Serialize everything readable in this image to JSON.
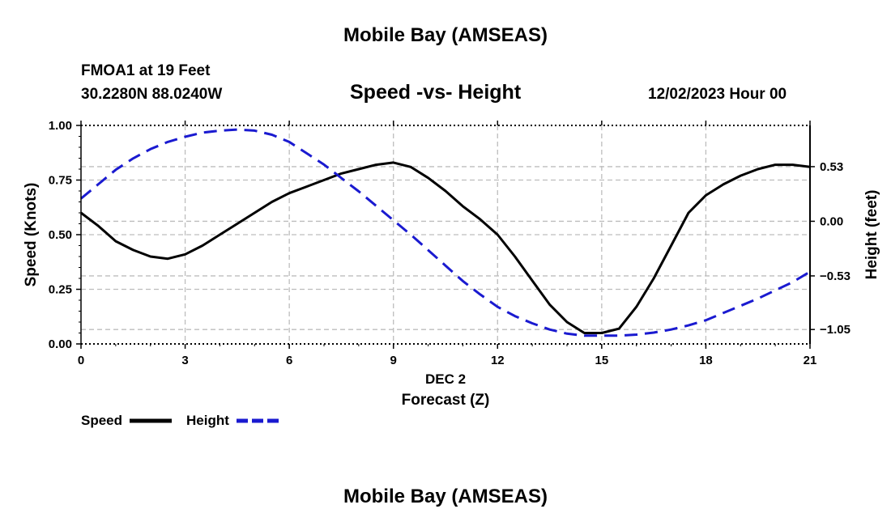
{
  "header": {
    "top_title": "Mobile Bay (AMSEAS)",
    "station": "FMOA1 at 19 Feet",
    "coords": "30.2280N  88.0240W",
    "subtitle": "Speed -vs- Height",
    "datetime": "12/02/2023 Hour 00",
    "bottom_title": "Mobile Bay (AMSEAS)"
  },
  "chart_data": {
    "type": "line",
    "title": "Speed -vs- Height",
    "xlabel": "Forecast (Z)",
    "xlabel_date": "DEC 2",
    "ylabel_left": "Speed (Knots)",
    "ylabel_right": "Height (feet)",
    "xlim": [
      0,
      21
    ],
    "ylim_left": [
      0,
      1
    ],
    "ylim_right": [
      -1.19,
      0.93
    ],
    "x_ticks": [
      0,
      3,
      6,
      9,
      12,
      15,
      18,
      21
    ],
    "x_tick_labels": [
      "0",
      "3",
      "6",
      "9",
      "12",
      "15",
      "18",
      "21"
    ],
    "y_left_ticks": [
      0,
      0.25,
      0.5,
      0.75,
      1.0
    ],
    "y_left_tick_labels": [
      "0.00",
      "0.25",
      "0.50",
      "0.75",
      "1.00"
    ],
    "y_right_ticks": [
      0.53,
      0.0,
      -0.53,
      -1.05
    ],
    "y_right_tick_labels": [
      "0.53",
      "0.00",
      "−0.53",
      "−1.05"
    ],
    "grid": true,
    "series": [
      {
        "name": "Speed",
        "axis": "left",
        "color": "#000000",
        "dash": "solid",
        "x": [
          0,
          0.5,
          1,
          1.5,
          2,
          2.5,
          3,
          3.5,
          4,
          4.5,
          5,
          5.5,
          6,
          6.5,
          7,
          7.5,
          8,
          8.5,
          9,
          9.5,
          10,
          10.5,
          11,
          11.5,
          12,
          12.5,
          13,
          13.5,
          14,
          14.5,
          15,
          15.5,
          16,
          16.5,
          17,
          17.5,
          18,
          18.5,
          19,
          19.5,
          20,
          20.5,
          21
        ],
        "values": [
          0.6,
          0.54,
          0.47,
          0.43,
          0.4,
          0.39,
          0.41,
          0.45,
          0.5,
          0.55,
          0.6,
          0.65,
          0.69,
          0.72,
          0.75,
          0.78,
          0.8,
          0.82,
          0.83,
          0.81,
          0.76,
          0.7,
          0.63,
          0.57,
          0.5,
          0.4,
          0.29,
          0.18,
          0.1,
          0.05,
          0.05,
          0.07,
          0.17,
          0.3,
          0.45,
          0.6,
          0.68,
          0.73,
          0.77,
          0.8,
          0.82,
          0.82,
          0.81
        ]
      },
      {
        "name": "Height",
        "axis": "right",
        "color": "#1a1ad0",
        "dash": "dashed",
        "x": [
          0,
          0.5,
          1,
          1.5,
          2,
          2.5,
          3,
          3.5,
          4,
          4.5,
          5,
          5.5,
          6,
          6.5,
          7,
          7.5,
          8,
          8.5,
          9,
          9.5,
          10,
          10.5,
          11,
          11.5,
          12,
          12.5,
          13,
          13.5,
          14,
          14.5,
          15,
          15.5,
          16,
          16.5,
          17,
          17.5,
          18,
          18.5,
          19,
          19.5,
          20,
          20.5,
          21
        ],
        "values": [
          0.22,
          0.36,
          0.5,
          0.61,
          0.7,
          0.77,
          0.82,
          0.86,
          0.88,
          0.89,
          0.88,
          0.84,
          0.77,
          0.66,
          0.55,
          0.42,
          0.29,
          0.15,
          0.01,
          -0.13,
          -0.28,
          -0.43,
          -0.58,
          -0.71,
          -0.83,
          -0.92,
          -0.99,
          -1.05,
          -1.09,
          -1.11,
          -1.11,
          -1.11,
          -1.1,
          -1.08,
          -1.05,
          -1.01,
          -0.96,
          -0.89,
          -0.82,
          -0.75,
          -0.67,
          -0.59,
          -0.49
        ]
      }
    ],
    "legend": [
      {
        "label": "Speed",
        "color": "#000000",
        "dash": "solid"
      },
      {
        "label": "Height",
        "color": "#1a1ad0",
        "dash": "dashed"
      }
    ]
  }
}
